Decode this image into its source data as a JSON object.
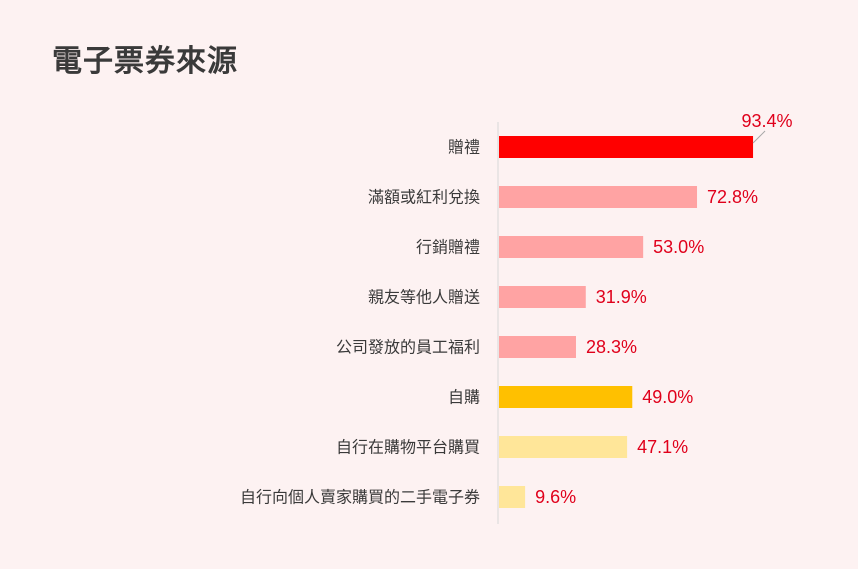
{
  "chart_data": {
    "type": "bar",
    "orientation": "horizontal",
    "title": "電子票券來源",
    "categories": [
      "贈禮",
      "滿額或紅利兌換",
      "行銷贈禮",
      "親友等他人贈送",
      "公司發放的員工福利",
      "自購",
      "自行在購物平台購買",
      "自行向個人賣家購買的二手電子券"
    ],
    "values": [
      93.4,
      72.8,
      53.0,
      31.9,
      28.3,
      49.0,
      47.1,
      9.6
    ],
    "value_labels": [
      "93.4%",
      "72.8%",
      "53.0%",
      "31.9%",
      "28.3%",
      "49.0%",
      "47.1%",
      "9.6%"
    ],
    "bar_colors": [
      "#ff0000",
      "#ffa3a3",
      "#ffa3a3",
      "#ffa3a3",
      "#ffa3a3",
      "#ffc000",
      "#ffe699",
      "#ffe699"
    ],
    "xlim": [
      0,
      100
    ],
    "grid": false,
    "legend": "none"
  },
  "colors": {
    "background": "#fdf2f2",
    "value_text": "#e0001b",
    "axis_line": "#d8d8d8"
  }
}
